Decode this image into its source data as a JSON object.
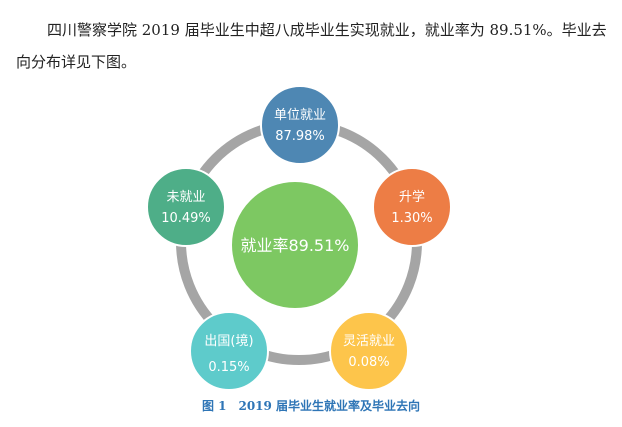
{
  "paragraph": "四川警察学院 2019 届毕业生中超八成毕业生实现就业，就业率为 89.51%。毕业去向分布详见下图。",
  "center": {
    "label": "就业率89.51%",
    "color": "#7dc862"
  },
  "nodes": [
    {
      "label": "单位就业",
      "value": "87.98%",
      "color": "#4e87b3"
    },
    {
      "label": "升学",
      "value": "1.30%",
      "color": "#ed7d45"
    },
    {
      "label": "灵活就业",
      "value": "0.08%",
      "color": "#fdc54b"
    },
    {
      "label": "出国(境)",
      "value": "0.15%",
      "color": "#5ecbcb"
    },
    {
      "label": "未就业",
      "value": "10.49%",
      "color": "#4eae88"
    }
  ],
  "ring_color": "#a5a5a5",
  "caption": "图 1　2019 届毕业生就业率及毕业去向"
}
